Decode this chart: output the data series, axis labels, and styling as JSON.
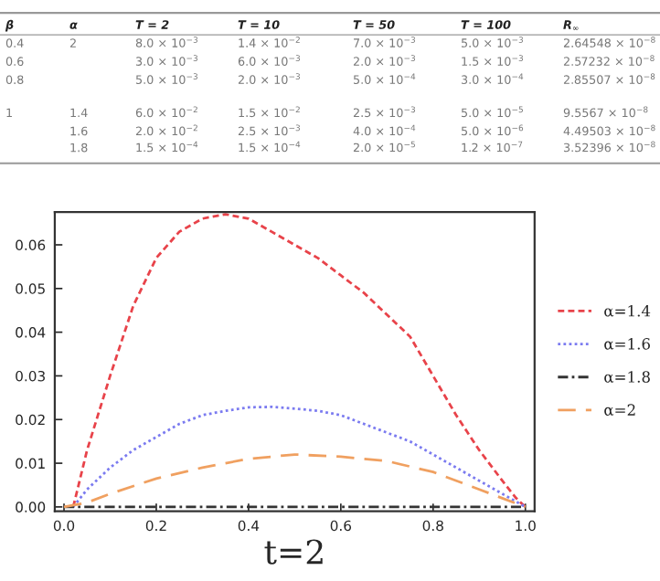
{
  "chart_data": [
    {
      "type": "other",
      "annotations": [
        "β",
        "α",
        "T = 2",
        "T = 10",
        "T = 50",
        "T = 100",
        "R$_{∞}$",
        "0.4",
        "2",
        "8.0 × 10$^{−3}$",
        "1.4 × 10$^{−2}$",
        "7.0 × 10$^{−3}$",
        "5.0 × 10$^{−3}$",
        "2.64548 × 10$^{−8}$",
        "0.6",
        "3.0 × 10$^{−3}$",
        "6.0 × 10$^{−3}$",
        "2.0 × 10$^{−3}$",
        "1.5 × 10$^{−3}$",
        "2.57232 × 10$^{−8}$",
        "0.8",
        "5.0 × 10$^{−3}$",
        "2.0 × 10$^{−3}$",
        "5.0 × 10$^{−4}$",
        "3.0 × 10$^{−4}$",
        "2.85507 × 10$^{−8}$",
        "1",
        "1.4",
        "6.0 × 10$^{−2}$",
        "1.5 × 10$^{−2}$",
        "2.5 × 10$^{−3}$",
        "5.0 × 10$^{−5}$",
        "9.5567 × 10$^{−8}$",
        "1.6",
        "2.0 × 10$^{−2}$",
        "2.5 × 10$^{−3}$",
        "4.0 × 10$^{−4}$",
        "5.0 × 10$^{−6}$",
        "4.49503 × 10$^{−8}$",
        "1.8",
        "1.5 × 10$^{−4}$",
        "1.5 × 10$^{−4}$",
        "2.0 × 10$^{−5}$",
        "1.2 × 10$^{−7}$",
        "3.52396 × 10$^{−8}$"
      ]
    },
    {
      "type": "line",
      "xlabel": "t=2",
      "xlim": [
        -0.02,
        1.02
      ],
      "ylim": [
        -0.001,
        0.0675
      ],
      "xticks": [
        {
          "value": 0,
          "label": "0.0"
        },
        0.2,
        0.4,
        0.6,
        0.8,
        {
          "value": 1,
          "label": "1.0"
        }
      ],
      "yticks": [
        {
          "value": 0,
          "label": "0.00"
        },
        {
          "value": 0.01,
          "label": "0.01"
        },
        {
          "value": 0.02,
          "label": "0.02"
        },
        {
          "value": 0.03,
          "label": "0.03"
        },
        {
          "value": 0.04,
          "label": "0.04"
        },
        {
          "value": 0.05,
          "label": "0.05"
        },
        {
          "value": 0.06,
          "label": "0.06"
        }
      ],
      "grid": false,
      "legend": "right",
      "marker": "none",
      "series": [
        {
          "name": "α=1.4",
          "color": "#e8434a",
          "line_style": "dashed",
          "x": [
            0.02,
            0.05,
            0.1,
            0.15,
            0.2,
            0.25,
            0.3,
            0.35,
            0.4,
            0.45,
            0.5,
            0.55,
            0.6,
            0.65,
            0.7,
            0.75,
            0.8,
            0.85,
            0.9,
            0.95,
            0.98,
            1
          ],
          "values": [
            0,
            0.013,
            0.03,
            0.046,
            0.057,
            0.063,
            0.066,
            0.067,
            0.066,
            0.063,
            0.06,
            0.057,
            0.053,
            0.049,
            0.044,
            0.039,
            0.03,
            0.021,
            0.013,
            0.006,
            0.002,
            0
          ]
        },
        {
          "name": "α=1.6",
          "color": "#7b7bf0",
          "line_style": "dotted",
          "x": [
            0.02,
            0.05,
            0.1,
            0.15,
            0.2,
            0.25,
            0.3,
            0.35,
            0.4,
            0.45,
            0.5,
            0.55,
            0.6,
            0.65,
            0.7,
            0.75,
            0.8,
            0.85,
            0.9,
            0.95,
            1
          ],
          "values": [
            0,
            0.004,
            0.009,
            0.013,
            0.016,
            0.019,
            0.021,
            0.022,
            0.0228,
            0.0229,
            0.0225,
            0.022,
            0.021,
            0.019,
            0.017,
            0.015,
            0.012,
            0.009,
            0.006,
            0.003,
            0
          ]
        },
        {
          "name": "α=1.8",
          "color": "#333333",
          "line_style": "dashdot",
          "x": [
            0,
            1
          ],
          "values": [
            0,
            0
          ]
        },
        {
          "name": "α=2",
          "color": "#f0a060",
          "line_style": "longdash",
          "x": [
            0,
            0.05,
            0.1,
            0.2,
            0.3,
            0.4,
            0.5,
            0.6,
            0.7,
            0.8,
            0.9,
            0.95,
            1
          ],
          "values": [
            0,
            0.001,
            0.003,
            0.0065,
            0.009,
            0.011,
            0.012,
            0.0115,
            0.0105,
            0.008,
            0.004,
            0.002,
            0
          ]
        }
      ]
    }
  ]
}
